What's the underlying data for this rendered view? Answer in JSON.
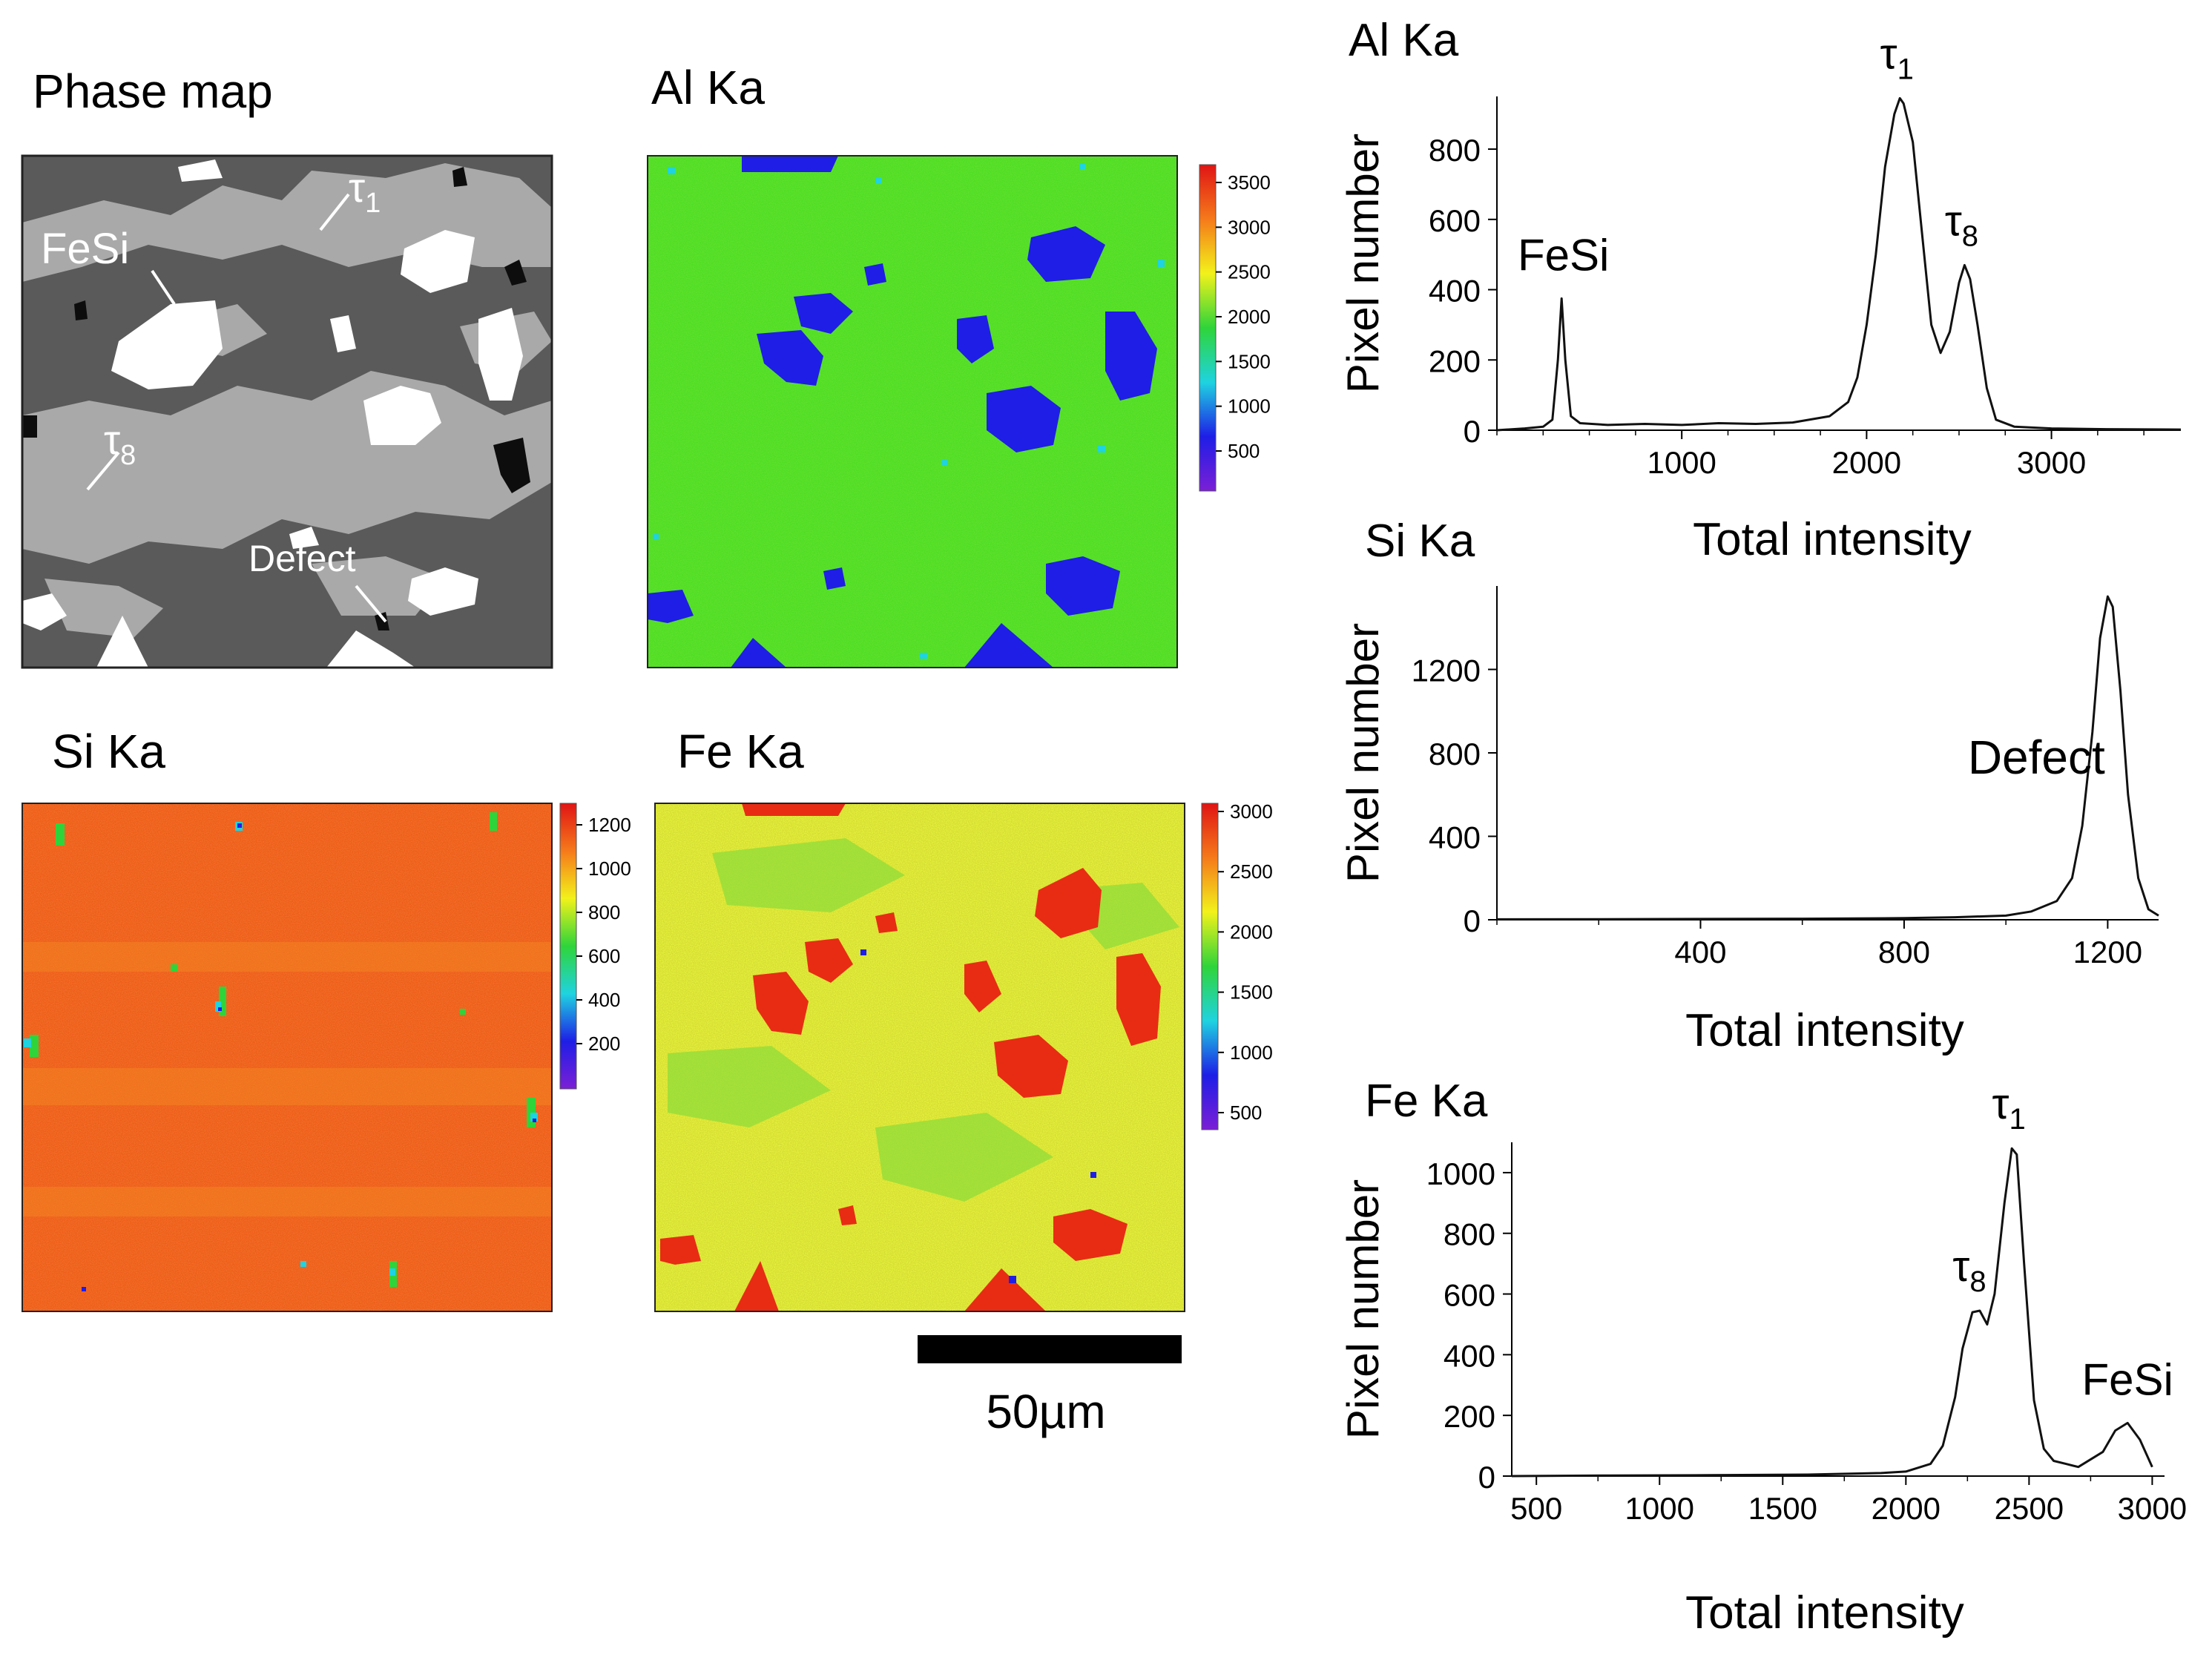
{
  "panels": {
    "phase_map": {
      "title": "Phase map",
      "labels": {
        "tau1": {
          "sym": "τ",
          "sub": "1"
        },
        "fesi": "FeSi",
        "tau8": {
          "sym": "τ",
          "sub": "8"
        },
        "defect": "Defect"
      },
      "colors": {
        "matrix": "#5a5a5a",
        "tau8": "#a9a9a9",
        "fesi": "#ffffff",
        "defect": "#0d0d0d",
        "border": "#222222"
      }
    },
    "al_map": {
      "title": "Al Ka",
      "colorbar_ticks": [
        "3500",
        "3000",
        "2500",
        "2000",
        "1500",
        "1000",
        "500"
      ]
    },
    "si_map": {
      "title": "Si Ka",
      "colorbar_ticks": [
        "1200",
        "1000",
        "800",
        "600",
        "400",
        "200"
      ]
    },
    "fe_map": {
      "title": "Fe Ka",
      "colorbar_ticks": [
        "3000",
        "2500",
        "2000",
        "1500",
        "1000",
        "500"
      ]
    },
    "scale_bar": {
      "label": "50µm"
    },
    "colormap": [
      "#7b1fd6",
      "#1e1ee6",
      "#1fd3e0",
      "#2fd43a",
      "#f2f21a",
      "#f57a1a",
      "#e01414"
    ]
  },
  "chart_data": [
    {
      "type": "line",
      "title": "Al Ka",
      "xlabel": "Total intensity",
      "ylabel": "Pixel number",
      "xlim": [
        0,
        3700
      ],
      "ylim": [
        0,
        950
      ],
      "xticks": [
        "1000",
        "2000",
        "3000"
      ],
      "yticks": [
        "0",
        "200",
        "400",
        "600",
        "800"
      ],
      "x": [
        0,
        150,
        250,
        300,
        330,
        350,
        370,
        400,
        450,
        600,
        800,
        1000,
        1200,
        1400,
        1600,
        1800,
        1900,
        1950,
        2000,
        2050,
        2100,
        2150,
        2180,
        2200,
        2250,
        2300,
        2350,
        2400,
        2450,
        2500,
        2530,
        2560,
        2600,
        2650,
        2700,
        2800,
        3000,
        3300,
        3700
      ],
      "y": [
        0,
        5,
        10,
        30,
        200,
        375,
        200,
        40,
        20,
        15,
        18,
        15,
        20,
        18,
        22,
        40,
        80,
        150,
        300,
        500,
        750,
        900,
        945,
        930,
        820,
        560,
        300,
        220,
        280,
        420,
        470,
        430,
        300,
        120,
        30,
        10,
        5,
        3,
        2
      ],
      "annotations": [
        {
          "text": "FeSi",
          "x": 360,
          "y": 375
        },
        {
          "sym": "τ",
          "sub": "1",
          "x": 2180,
          "y": 945
        },
        {
          "sym": "τ",
          "sub": "8",
          "x": 2530,
          "y": 470
        }
      ]
    },
    {
      "type": "line",
      "title": "Si Ka",
      "xlabel": "Total intensity",
      "ylabel": "Pixel number",
      "xlim": [
        0,
        1300
      ],
      "ylim": [
        0,
        1600
      ],
      "xticks": [
        "400",
        "800",
        "1200"
      ],
      "yticks": [
        "0",
        "400",
        "800",
        "1200"
      ],
      "x": [
        0,
        200,
        400,
        600,
        800,
        900,
        1000,
        1050,
        1100,
        1130,
        1150,
        1170,
        1185,
        1200,
        1210,
        1225,
        1240,
        1260,
        1280,
        1300
      ],
      "y": [
        2,
        3,
        4,
        5,
        8,
        12,
        20,
        40,
        90,
        200,
        450,
        900,
        1350,
        1550,
        1500,
        1100,
        600,
        200,
        50,
        20
      ],
      "annotations": [
        {
          "text": "Defect",
          "x": 1060,
          "y": 700
        }
      ]
    },
    {
      "type": "line",
      "title": "Fe Ka",
      "xlabel": "Total intensity",
      "ylabel": "Pixel number",
      "xlim": [
        400,
        3050
      ],
      "ylim": [
        0,
        1100
      ],
      "xticks": [
        "500",
        "1000",
        "1500",
        "2000",
        "2500",
        "3000"
      ],
      "yticks": [
        "0",
        "200",
        "400",
        "600",
        "800",
        "1000"
      ],
      "x": [
        400,
        800,
        1200,
        1600,
        1900,
        2000,
        2100,
        2150,
        2200,
        2230,
        2270,
        2300,
        2330,
        2360,
        2400,
        2430,
        2450,
        2480,
        2520,
        2560,
        2600,
        2650,
        2700,
        2800,
        2850,
        2900,
        2950,
        3000
      ],
      "y": [
        0,
        2,
        3,
        5,
        10,
        15,
        40,
        100,
        260,
        420,
        540,
        545,
        500,
        600,
        900,
        1080,
        1060,
        700,
        250,
        90,
        50,
        40,
        30,
        80,
        150,
        175,
        120,
        30
      ],
      "annotations": [
        {
          "sym": "τ",
          "sub": "8",
          "x": 2270,
          "y": 545
        },
        {
          "sym": "τ",
          "sub": "1",
          "x": 2430,
          "y": 1080
        },
        {
          "text": "FeSi",
          "x": 2900,
          "y": 175
        }
      ]
    }
  ]
}
